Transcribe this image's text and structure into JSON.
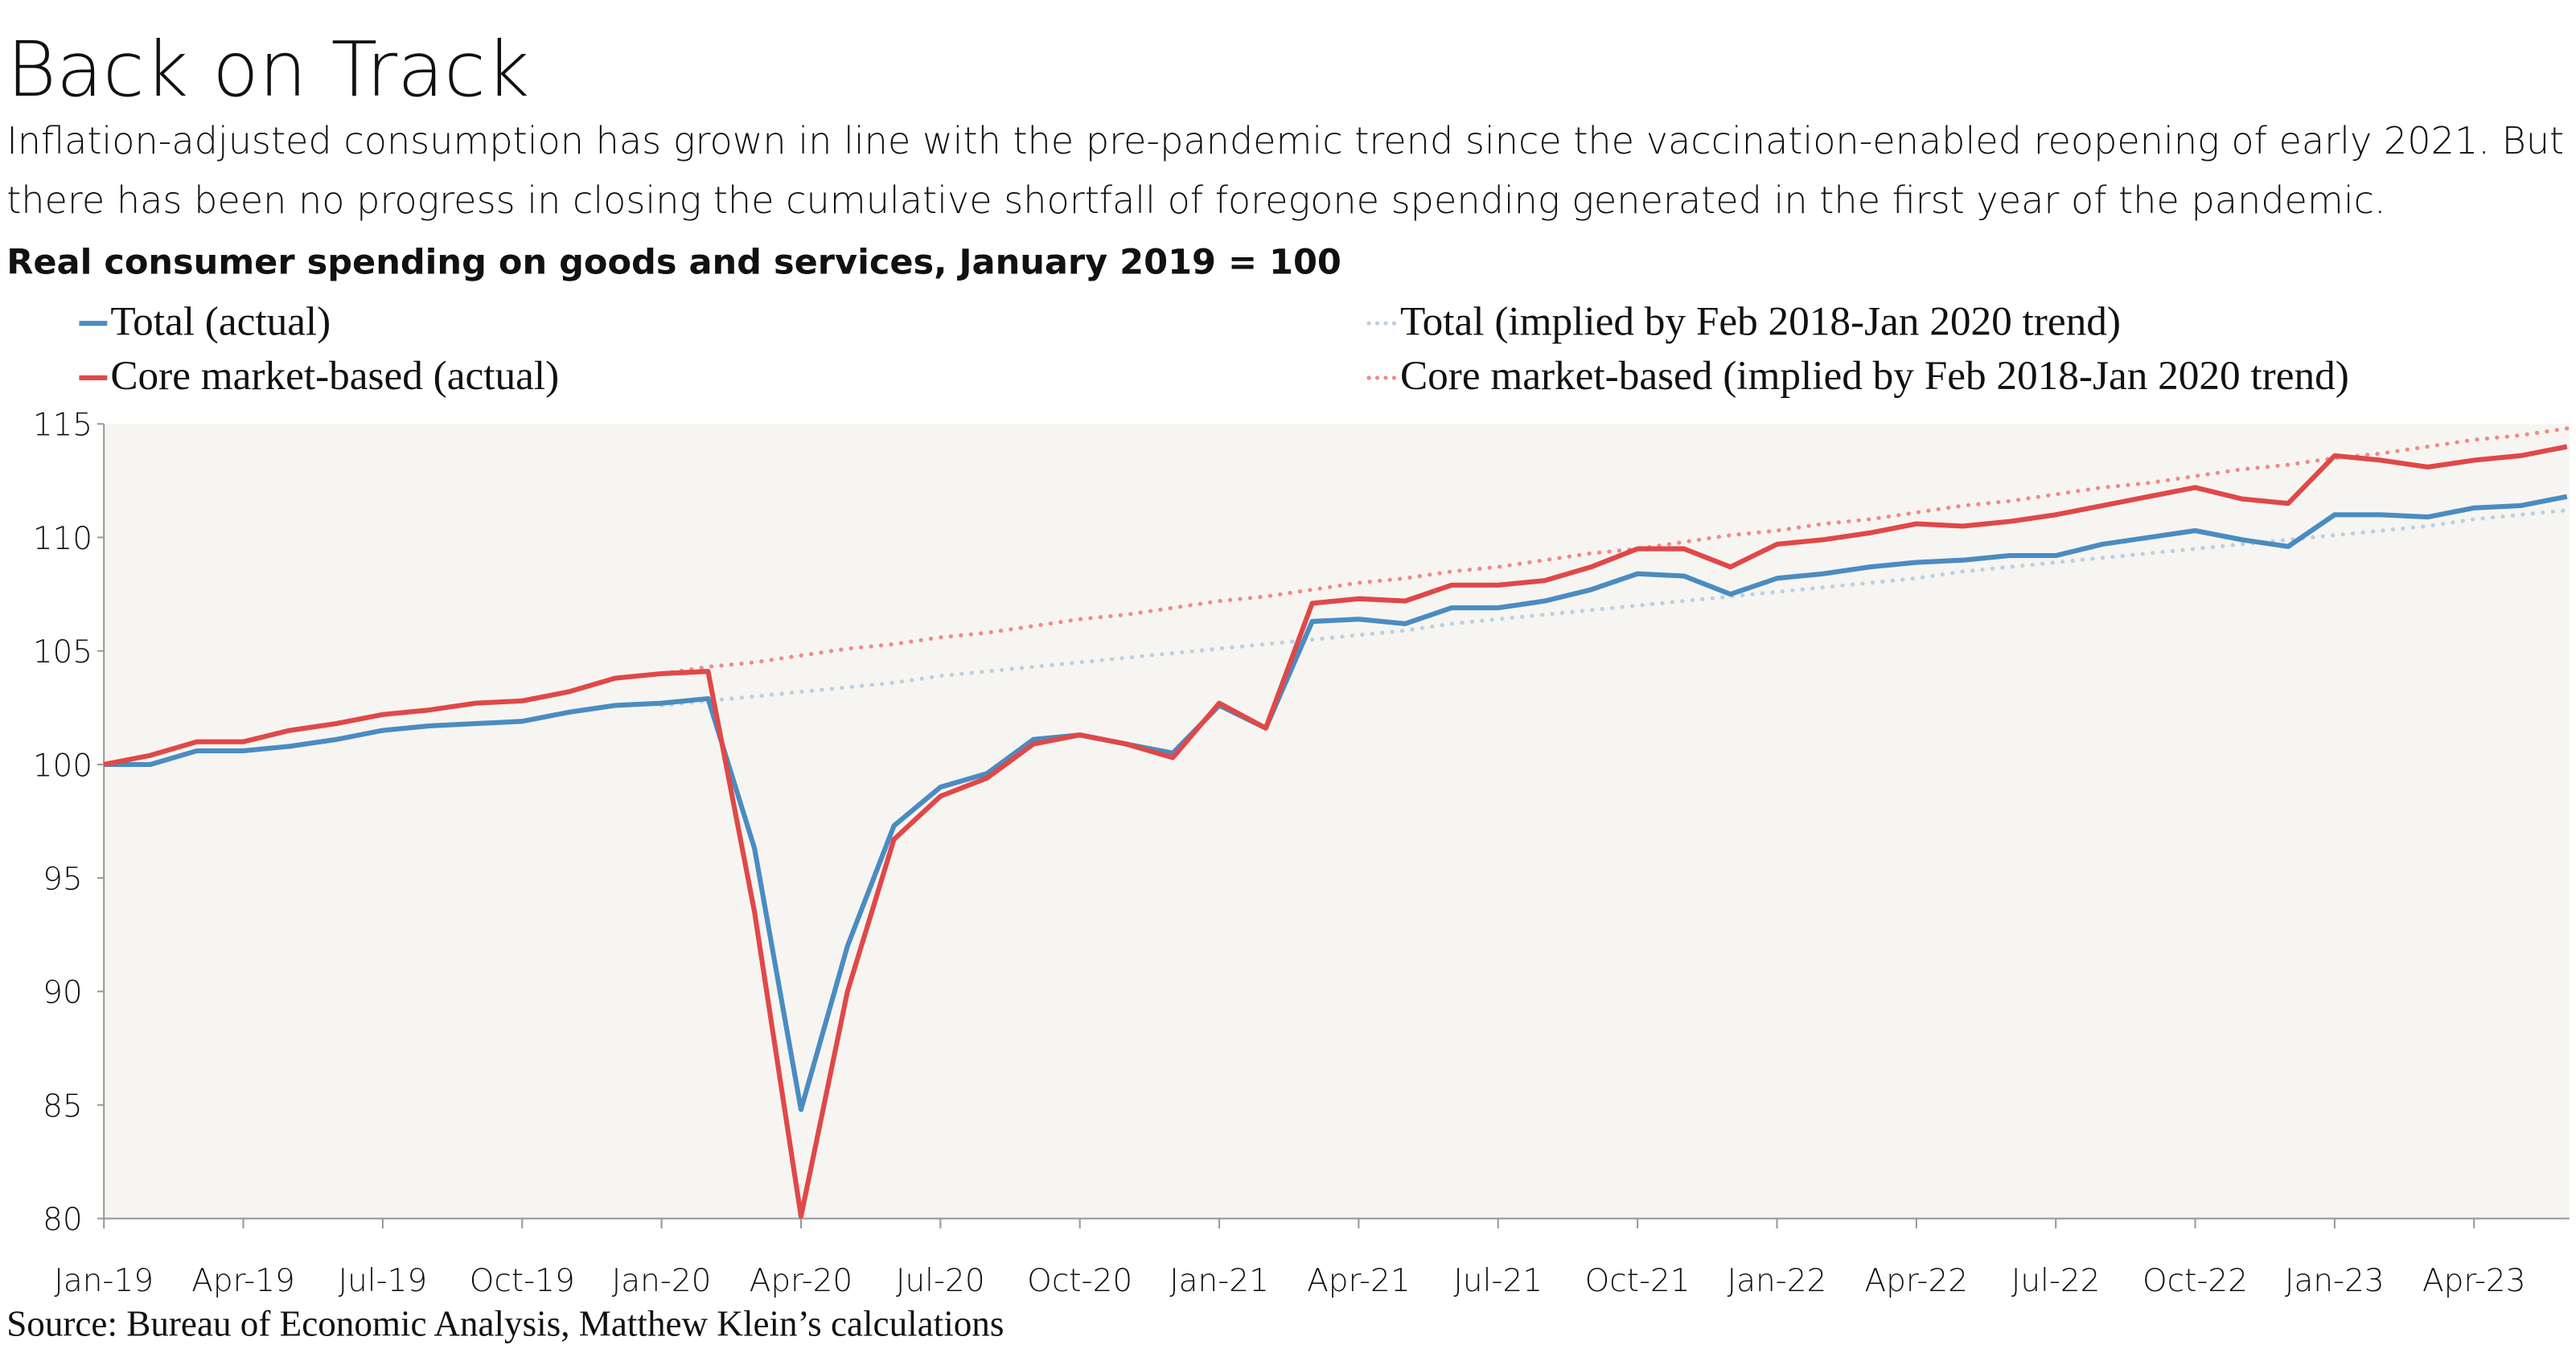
{
  "chart_data": {
    "type": "line",
    "title": "Back on Track",
    "subtitle": [
      "Inflation-adjusted consumption has grown in line with the pre-pandemic trend since the vaccination-enabled reopening of early 2021. But",
      "there has been no progress in closing the cumulative shortfall of foregone spending generated in the first year of the pandemic."
    ],
    "chart_title": "Real consumer spending on goods and services, January 2019 = 100",
    "source": "Source: Bureau of Economic Analysis, Matthew Klein’s calculations",
    "categories": [
      "Jan-19",
      null,
      null,
      "Apr-19",
      null,
      null,
      "Jul-19",
      null,
      null,
      "Oct-19",
      null,
      null,
      "Jan-20",
      null,
      null,
      "Apr-20",
      null,
      null,
      "Jul-20",
      null,
      null,
      "Oct-20",
      null,
      null,
      "Jan-21",
      null,
      null,
      "Apr-21",
      null,
      null,
      "Jul-21",
      null,
      null,
      "Oct-21",
      null,
      null,
      "Jan-22",
      null,
      null,
      "Apr-22",
      null,
      null,
      "Jul-22",
      null,
      null,
      "Oct-22",
      null,
      null,
      "Jan-23",
      null,
      null,
      "Apr-23",
      null,
      null
    ],
    "series": [
      {
        "name": "Total (actual)",
        "color": "#4a8cc2",
        "style": "solid",
        "values": [
          100,
          100,
          100.6,
          100.6,
          100.8,
          101.1,
          101.5,
          101.7,
          101.8,
          101.9,
          102.3,
          102.6,
          102.7,
          102.9,
          96.3,
          84.8,
          92.0,
          97.3,
          99.0,
          99.6,
          101.1,
          101.3,
          100.9,
          100.5,
          102.6,
          101.6,
          106.3,
          106.4,
          106.2,
          106.9,
          106.9,
          107.2,
          107.7,
          108.4,
          108.3,
          107.5,
          108.2,
          108.4,
          108.7,
          108.9,
          109.0,
          109.2,
          109.2,
          109.7,
          110.0,
          110.3,
          109.9,
          109.6,
          111.0,
          111.0,
          110.9,
          111.3,
          111.4,
          111.8
        ]
      },
      {
        "name": "Core market-based (actual)",
        "color": "#e04848",
        "style": "solid",
        "values": [
          100,
          100.4,
          101.0,
          101.0,
          101.5,
          101.8,
          102.2,
          102.4,
          102.7,
          102.8,
          103.2,
          103.8,
          104.0,
          104.1,
          93.5,
          80.1,
          90.0,
          96.7,
          98.6,
          99.4,
          100.9,
          101.3,
          100.9,
          100.3,
          102.7,
          101.6,
          107.1,
          107.3,
          107.2,
          107.9,
          107.9,
          108.1,
          108.7,
          109.5,
          109.5,
          108.7,
          109.7,
          109.9,
          110.2,
          110.6,
          110.5,
          110.7,
          111.0,
          111.4,
          111.8,
          112.2,
          111.7,
          111.5,
          113.6,
          113.4,
          113.1,
          113.4,
          113.6,
          114.0
        ]
      },
      {
        "name": "Total (implied by Feb 2018-Jan 2020 trend)",
        "color": "#b9d0e3",
        "style": "dotted",
        "values": [
          null,
          null,
          null,
          null,
          null,
          null,
          null,
          null,
          null,
          null,
          null,
          null,
          102.6,
          102.8,
          103.0,
          103.2,
          103.4,
          103.6,
          103.9,
          104.1,
          104.3,
          104.5,
          104.7,
          104.9,
          105.1,
          105.3,
          105.5,
          105.7,
          105.9,
          106.2,
          106.4,
          106.6,
          106.8,
          107.0,
          107.2,
          107.4,
          107.6,
          107.8,
          108.0,
          108.2,
          108.5,
          108.7,
          108.9,
          109.1,
          109.3,
          109.5,
          109.7,
          109.9,
          110.1,
          110.3,
          110.5,
          110.8,
          111.0,
          111.2
        ]
      },
      {
        "name": "Core market-based (implied by Feb 2018-Jan 2020 trend)",
        "color": "#f08a8a",
        "style": "dotted",
        "values": [
          null,
          null,
          null,
          null,
          null,
          null,
          null,
          null,
          null,
          null,
          null,
          null,
          104.0,
          104.3,
          104.5,
          104.8,
          105.1,
          105.3,
          105.6,
          105.8,
          106.1,
          106.4,
          106.6,
          106.9,
          107.2,
          107.4,
          107.7,
          108.0,
          108.2,
          108.5,
          108.7,
          109.0,
          109.3,
          109.5,
          109.8,
          110.1,
          110.3,
          110.6,
          110.8,
          111.1,
          111.4,
          111.6,
          111.9,
          112.2,
          112.4,
          112.7,
          113.0,
          113.2,
          113.5,
          113.7,
          114.0,
          114.3,
          114.5,
          114.8
        ]
      }
    ],
    "ylim": [
      80,
      115
    ],
    "yticks": [
      80,
      85,
      90,
      95,
      100,
      105,
      110,
      115
    ],
    "grid": false
  }
}
